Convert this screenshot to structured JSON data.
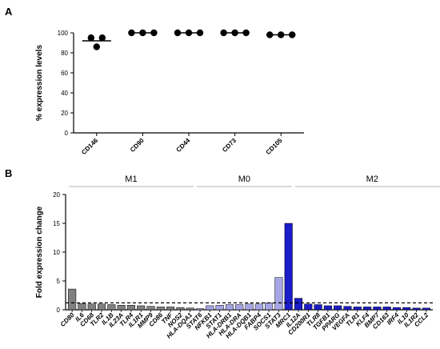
{
  "chart_data": [
    {
      "panel": "A",
      "type": "scatter",
      "ylabel": "% expression levels",
      "ylim": [
        0,
        100
      ],
      "yticks": [
        "0",
        "20",
        "40",
        "60",
        "80",
        "100"
      ],
      "categories": [
        "CD146",
        "CD90",
        "CD44",
        "CD73",
        "CD105"
      ],
      "points": [
        [
          95,
          95,
          86
        ],
        [
          100,
          100,
          100
        ],
        [
          100,
          100,
          100
        ],
        [
          100,
          100,
          100
        ],
        [
          98,
          98,
          98
        ]
      ],
      "means": [
        92,
        100,
        100,
        100,
        98
      ]
    },
    {
      "panel": "B",
      "type": "bar",
      "ylabel": "Fold expression change",
      "ylim": [
        0,
        20
      ],
      "yticks": [
        "0",
        "5",
        "10",
        "15",
        "20"
      ],
      "reference_line": 1.2,
      "groups": [
        {
          "name": "M1",
          "start": 0,
          "end": 12,
          "color": "#808080"
        },
        {
          "name": "M0",
          "start": 13,
          "end": 22,
          "color": "#a6a6e6"
        },
        {
          "name": "M2",
          "start": 23,
          "end": 38,
          "color": "#1c1cc8"
        }
      ],
      "categories": [
        "CD80",
        "IL6",
        "CD68",
        "TLR2",
        "IL1B",
        "IL23A",
        "TLR4",
        "IL1R1",
        "MMP9",
        "CD86",
        "TNF",
        "NOS2",
        "HLA-DQA1",
        "STAT6",
        "NFKB1",
        "STAT1",
        "HLA-DRB1",
        "HLA-DRA",
        "HLA-DQB1",
        "FABP4",
        "SOCS1",
        "STAT3",
        "MRC1",
        "IL12A",
        "CD200R1",
        "TLR8",
        "TGFB1",
        "PPARG",
        "VEGFA",
        "TLR1",
        "KLF4",
        "BMP7",
        "CD163",
        "IRF4",
        "IL10",
        "IL1R2",
        "CCL2"
      ],
      "values": [
        3.6,
        1.1,
        1.0,
        1.0,
        0.9,
        0.8,
        0.8,
        0.7,
        0.6,
        0.5,
        0.5,
        0.4,
        0.3,
        0.2,
        0.7,
        0.8,
        0.9,
        0.9,
        1.0,
        1.0,
        1.2,
        5.6,
        15.0,
        2.0,
        1.0,
        0.9,
        0.7,
        0.7,
        0.6,
        0.5,
        0.5,
        0.5,
        0.5,
        0.4,
        0.4,
        0.3,
        0.3
      ],
      "colors": [
        "#808080",
        "#808080",
        "#808080",
        "#808080",
        "#808080",
        "#808080",
        "#808080",
        "#808080",
        "#808080",
        "#808080",
        "#808080",
        "#808080",
        "#808080",
        "#a6a6e6",
        "#a6a6e6",
        "#a6a6e6",
        "#a6a6e6",
        "#a6a6e6",
        "#a6a6e6",
        "#a6a6e6",
        "#a6a6e6",
        "#a6a6e6",
        "#1c1cc8",
        "#1c1cc8",
        "#1c1cc8",
        "#1c1cc8",
        "#1c1cc8",
        "#1c1cc8",
        "#1c1cc8",
        "#1c1cc8",
        "#1c1cc8",
        "#1c1cc8",
        "#1c1cc8",
        "#1c1cc8",
        "#1c1cc8",
        "#1c1cc8",
        "#1c1cc8"
      ]
    }
  ],
  "panel_labels": {
    "a": "A",
    "b": "B"
  }
}
